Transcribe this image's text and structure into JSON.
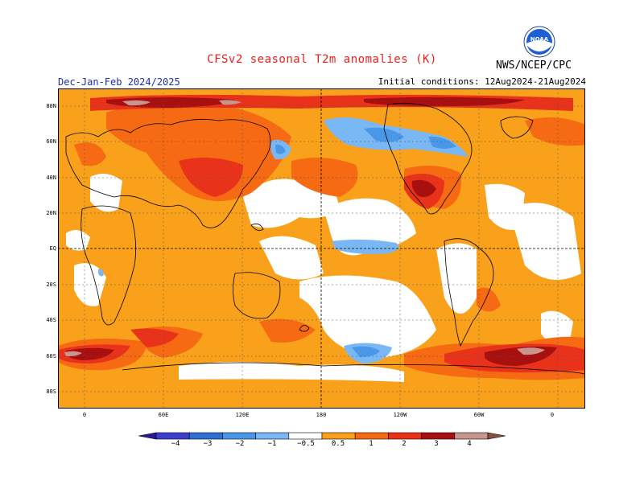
{
  "header": {
    "title": "CFSv2 seasonal T2m anomalies (K)",
    "org": "NWS/NCEP/CPC",
    "logo_text": "NOAA",
    "season": "Dec-Jan-Feb 2024/2025",
    "initial_conditions": "Initial conditions: 12Aug2024-21Aug2024"
  },
  "axes": {
    "lat_labels": [
      "80N",
      "60N",
      "40N",
      "20N",
      "EQ",
      "20S",
      "40S",
      "60S",
      "80S"
    ],
    "lon_labels": [
      "0",
      "60E",
      "120E",
      "180",
      "120W",
      "60W",
      "0"
    ]
  },
  "colorbar": {
    "labels": [
      "−4",
      "−3",
      "−2",
      "−1",
      "−0.5",
      "0.5",
      "1",
      "2",
      "3",
      "4"
    ],
    "colors": [
      "#2a1a9a",
      "#3a3fcc",
      "#2f6fd0",
      "#4a97e8",
      "#7ab8f5",
      "#ffffff",
      "#f9a11b",
      "#f66a14",
      "#e8321a",
      "#a81010",
      "#c9968e",
      "#8a5040"
    ]
  },
  "map_colors": {
    "warm": "#f9a11b",
    "hot": "#f66a14",
    "hotter": "#e8321a",
    "extreme": "#a81010",
    "peak": "#c9968e",
    "cool": "#7ab8f5",
    "cooler": "#4a97e8",
    "neutral": "#ffffff"
  }
}
